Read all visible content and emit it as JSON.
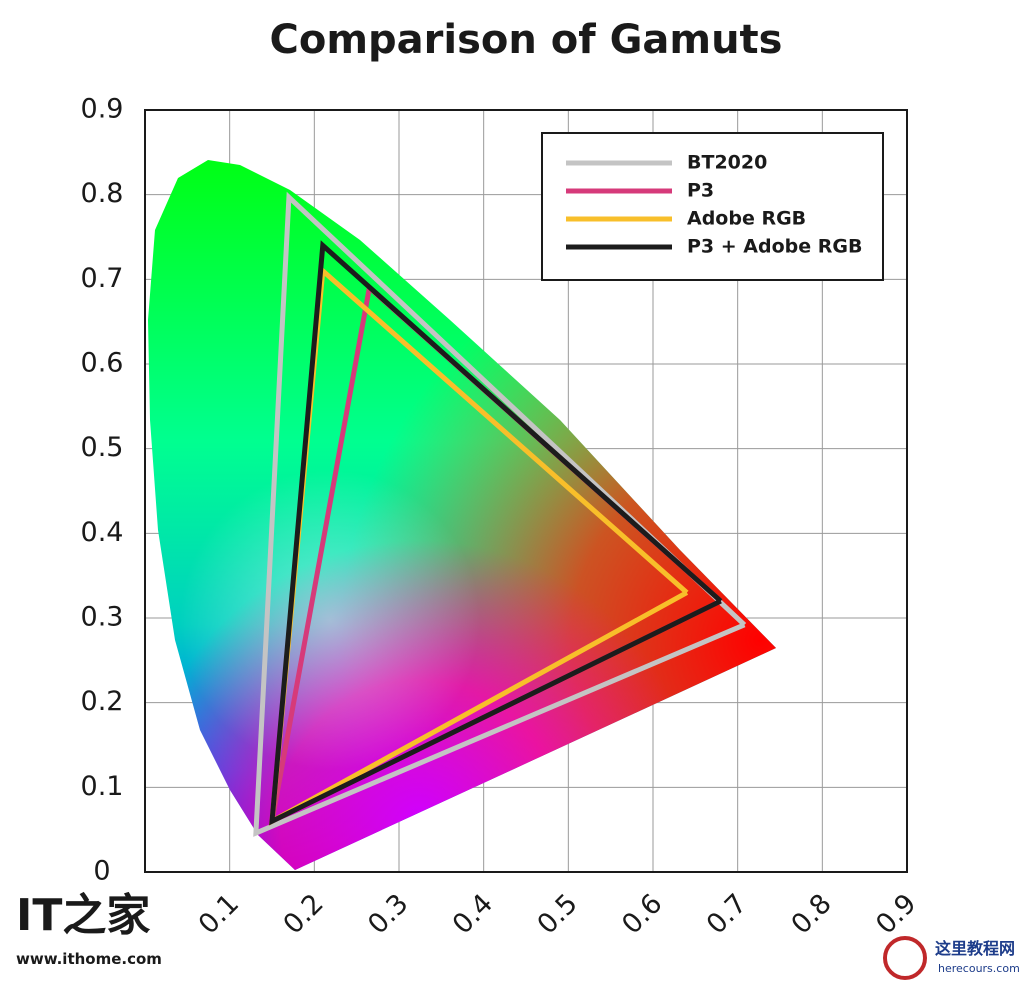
{
  "chart_data": {
    "type": "line",
    "title": "Comparison of Gamuts",
    "xlim": [
      0,
      0.9
    ],
    "ylim": [
      0,
      0.9
    ],
    "xticks": [
      0.1,
      0.2,
      0.3,
      0.4,
      0.5,
      0.6,
      0.7,
      0.8,
      0.9
    ],
    "yticks": [
      0,
      0.1,
      0.2,
      0.3,
      0.4,
      0.5,
      0.6,
      0.7,
      0.8,
      0.9
    ],
    "grid": true,
    "legend": "upper right",
    "series": [
      {
        "name": "BT2020",
        "color": "#c4c4c4",
        "x": [
          0.708,
          0.17,
          0.131,
          0.708
        ],
        "values": [
          0.292,
          0.797,
          0.046,
          0.292
        ]
      },
      {
        "name": "P3",
        "color": "#d63a7a",
        "x": [
          0.68,
          0.265,
          0.15,
          0.68
        ],
        "values": [
          0.32,
          0.69,
          0.06,
          0.32
        ]
      },
      {
        "name": "Adobe RGB",
        "color": "#f8bf2a",
        "x": [
          0.64,
          0.21,
          0.15,
          0.64
        ],
        "values": [
          0.33,
          0.71,
          0.06,
          0.33
        ]
      },
      {
        "name": "P3 + Adobe RGB",
        "color": "#1c1c1c",
        "x": [
          0.68,
          0.21,
          0.15,
          0.68
        ],
        "values": [
          0.32,
          0.74,
          0.06,
          0.32
        ]
      }
    ]
  },
  "watermarks": {
    "logo": "IT之家",
    "site": "www.ithome.com",
    "brand": "这里教程网",
    "brand_site": "herecours.com"
  }
}
